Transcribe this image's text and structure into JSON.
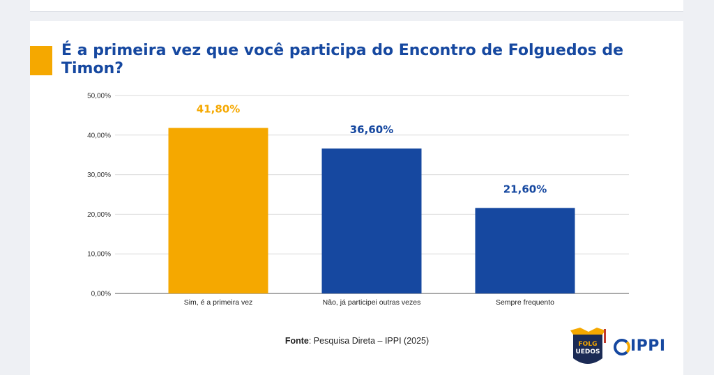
{
  "page": {
    "title": "É a primeira vez que você participa do Encontro de Folguedos de Timon?",
    "source_label": "Fonte",
    "source_text": ": Pesquisa Direta – IPPI (2025)"
  },
  "logos": {
    "folguedos": "FOLGUEDOS",
    "ippi": "IPPI"
  },
  "colors": {
    "accent": "#F5A800",
    "brand_blue": "#1648A0",
    "grid": "#d9d9d9"
  },
  "chart_data": {
    "type": "bar",
    "categories": [
      "Sim, é a primeira vez",
      "Não, já participei outras vezes",
      "Sempre frequento"
    ],
    "values": [
      41.8,
      36.6,
      21.6
    ],
    "value_labels": [
      "41,80%",
      "36,60%",
      "21,60%"
    ],
    "bar_colors": [
      "#F5A800",
      "#1648A0",
      "#1648A0"
    ],
    "label_colors": [
      "#F5A800",
      "#1648A0",
      "#1648A0"
    ],
    "ylim": [
      0,
      50
    ],
    "yticks": [
      0,
      10,
      20,
      30,
      40,
      50
    ],
    "ytick_labels": [
      "0,00%",
      "10,00%",
      "20,00%",
      "30,00%",
      "40,00%",
      "50,00%"
    ],
    "grid": true,
    "legend": "none"
  }
}
